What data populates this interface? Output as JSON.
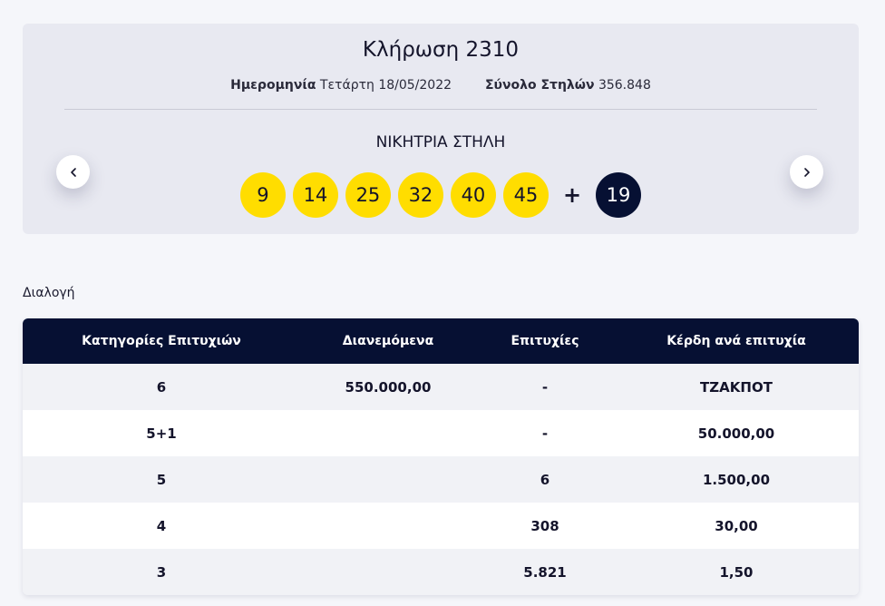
{
  "draw": {
    "title": "Κλήρωση 2310",
    "date_label": "Ημερομηνία",
    "date_value": "Τετάρτη 18/05/2022",
    "columns_label": "Σύνολο Στηλών",
    "columns_value": "356.848",
    "winning_title": "ΝΙΚΗΤΡΙΑ ΣΤΗΛΗ",
    "numbers": [
      "9",
      "14",
      "25",
      "32",
      "40",
      "45"
    ],
    "plus": "+",
    "bonus": "19",
    "ball_color": "#ffdd00",
    "bonus_color": "#061033"
  },
  "nav": {
    "prev_icon": "chevron-left-icon",
    "next_icon": "chevron-right-icon"
  },
  "section_label": "Διαλογή",
  "table": {
    "headers": [
      "Κατηγορίες Επιτυχιών",
      "Διανεμόμενα",
      "Επιτυχίες",
      "Κέρδη ανά επιτυχία"
    ],
    "rows": [
      [
        "6",
        "550.000,00",
        "-",
        "ΤΖΑΚΠΟΤ"
      ],
      [
        "5+1",
        "",
        "-",
        "50.000,00"
      ],
      [
        "5",
        "",
        "6",
        "1.500,00"
      ],
      [
        "4",
        "",
        "308",
        "30,00"
      ],
      [
        "3",
        "",
        "5.821",
        "1,50"
      ]
    ],
    "header_color": "#061033"
  }
}
